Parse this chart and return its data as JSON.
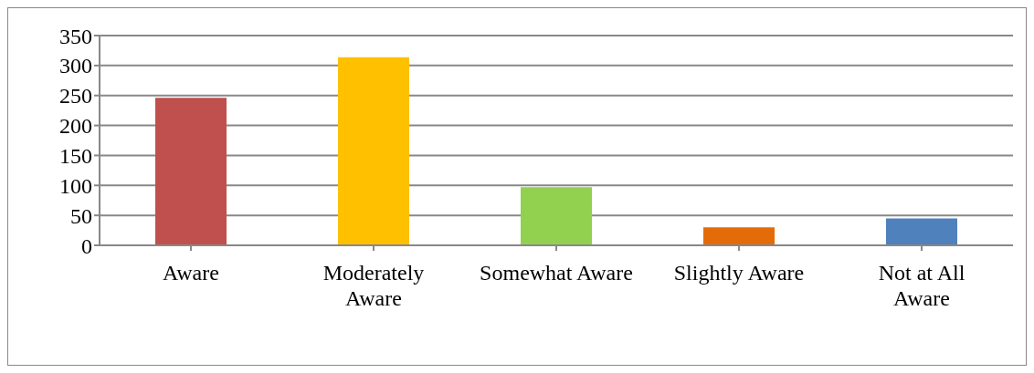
{
  "chart_data": {
    "type": "bar",
    "categories": [
      "Aware",
      "Moderately Aware",
      "Somewhat Aware",
      "Slightly Aware",
      "Not at All Aware"
    ],
    "values": [
      246,
      314,
      97,
      30,
      45
    ],
    "colors": [
      "#c0504d",
      "#ffc000",
      "#92d050",
      "#e36c09",
      "#4f81bd"
    ],
    "ylim": [
      0,
      350
    ],
    "yticks": [
      0,
      50,
      100,
      150,
      200,
      250,
      300,
      350
    ],
    "grid": "y",
    "legend": false
  }
}
